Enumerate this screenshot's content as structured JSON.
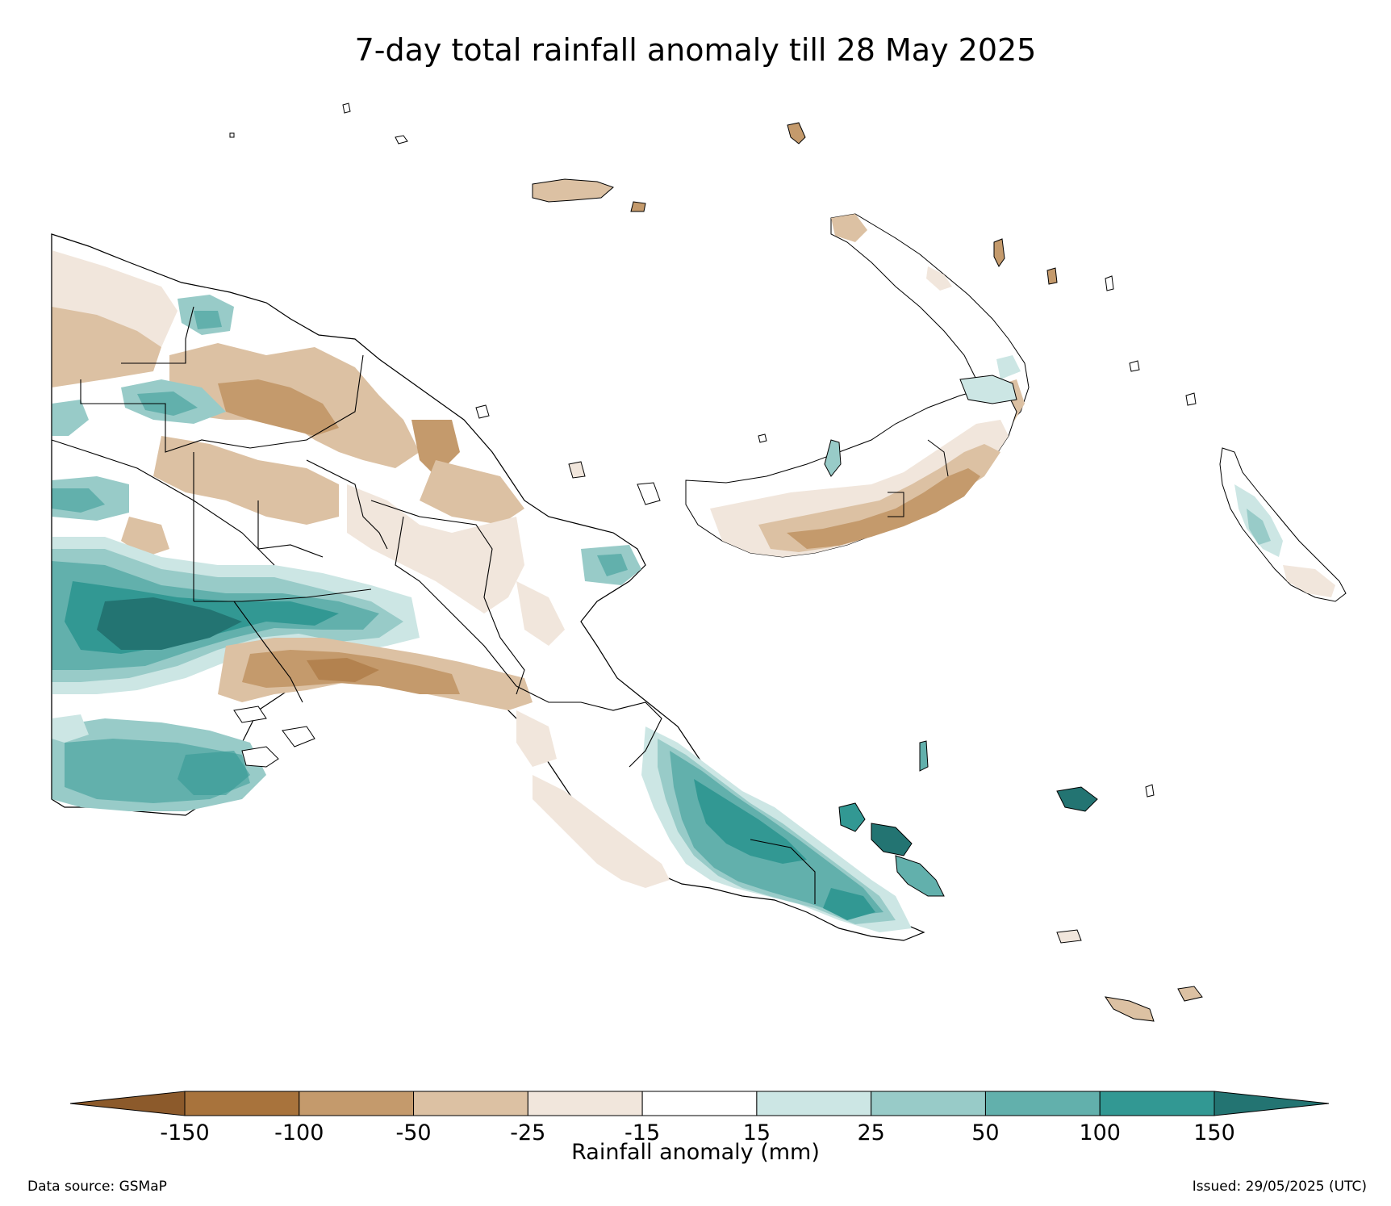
{
  "title": "7-day total rainfall anomaly till 28 May 2025",
  "colorbar": {
    "label": "Rainfall anomaly (mm)",
    "ticks": [
      "-150",
      "-100",
      "-50",
      "-25",
      "-15",
      "15",
      "25",
      "50",
      "100",
      "150"
    ],
    "bins": [
      {
        "range": "< -150",
        "color": "#8c5a2b"
      },
      {
        "range": "-150 to -100",
        "color": "#a8733c"
      },
      {
        "range": "-100 to -50",
        "color": "#c49a6c"
      },
      {
        "range": "-50 to -25",
        "color": "#dcc1a3"
      },
      {
        "range": "-25 to -15",
        "color": "#f1e6dc"
      },
      {
        "range": "-15 to 15",
        "color": "#ffffff"
      },
      {
        "range": "15 to 25",
        "color": "#cce6e4"
      },
      {
        "range": "25 to 50",
        "color": "#98cbc8"
      },
      {
        "range": "50 to 100",
        "color": "#62b0ac"
      },
      {
        "range": "100 to 150",
        "color": "#329893"
      },
      {
        "range": "> 150",
        "color": "#237472"
      }
    ]
  },
  "source": "Data source: GSMaP",
  "issued": "Issued: 29/05/2025 (UTC)"
}
